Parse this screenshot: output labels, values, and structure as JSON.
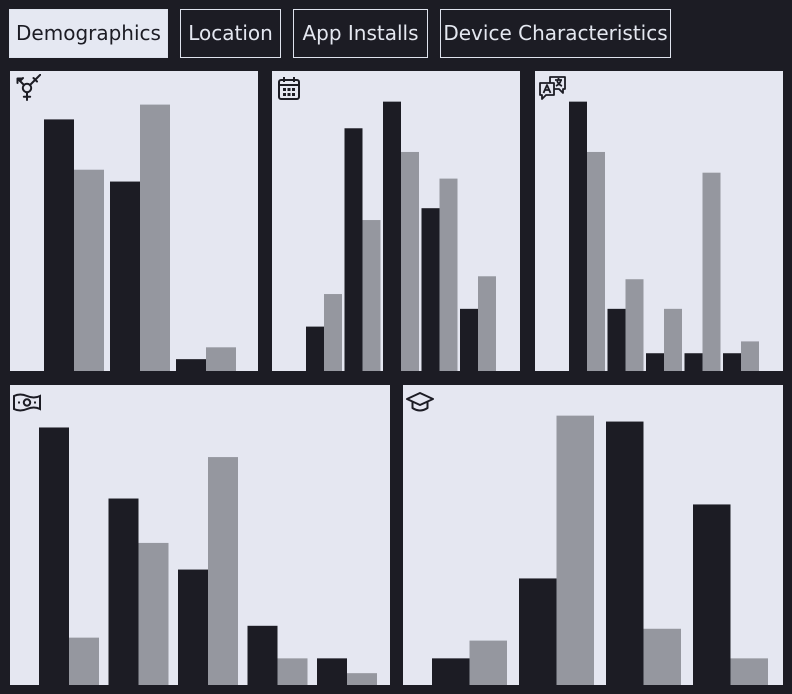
{
  "tabs": [
    {
      "label": "Demographics",
      "active": true
    },
    {
      "label": "Location",
      "active": false
    },
    {
      "label": "App Installs",
      "active": false
    },
    {
      "label": "Device Characteristics",
      "active": false
    }
  ],
  "colors": {
    "background": "#1c1c24",
    "panel": "#e5e7f1",
    "series_dark": "#1c1c24",
    "series_light": "#95979f"
  },
  "chart_data": [
    {
      "type": "bar",
      "icon": "gender-icon",
      "categories": [
        "",
        "",
        ""
      ],
      "series": [
        {
          "values": [
            85,
            64,
            4
          ]
        },
        {
          "values": [
            68,
            90,
            8
          ]
        }
      ],
      "ylim": [
        0,
        100
      ]
    },
    {
      "type": "bar",
      "icon": "calendar-icon",
      "categories": [
        "",
        "",
        "",
        "",
        ""
      ],
      "series": [
        {
          "values": [
            15,
            82,
            91,
            55,
            21
          ]
        },
        {
          "values": [
            26,
            51,
            74,
            65,
            32
          ]
        }
      ],
      "ylim": [
        0,
        100
      ]
    },
    {
      "type": "bar",
      "icon": "translate-icon",
      "categories": [
        "",
        "",
        "",
        "",
        ""
      ],
      "series": [
        {
          "values": [
            91,
            21,
            6,
            6,
            6
          ]
        },
        {
          "values": [
            74,
            31,
            21,
            67,
            10
          ]
        }
      ],
      "ylim": [
        0,
        100
      ]
    },
    {
      "type": "bar",
      "icon": "money-icon",
      "categories": [
        "",
        "",
        "",
        "",
        ""
      ],
      "series": [
        {
          "values": [
            87,
            63,
            39,
            20,
            9
          ]
        },
        {
          "values": [
            16,
            48,
            77,
            9,
            4
          ]
        }
      ],
      "ylim": [
        0,
        100
      ]
    },
    {
      "type": "bar",
      "icon": "graduation-cap-icon",
      "categories": [
        "",
        "",
        "",
        ""
      ],
      "series": [
        {
          "values": [
            9,
            36,
            89,
            61
          ]
        },
        {
          "values": [
            15,
            91,
            19,
            9
          ]
        }
      ],
      "ylim": [
        0,
        100
      ]
    }
  ]
}
